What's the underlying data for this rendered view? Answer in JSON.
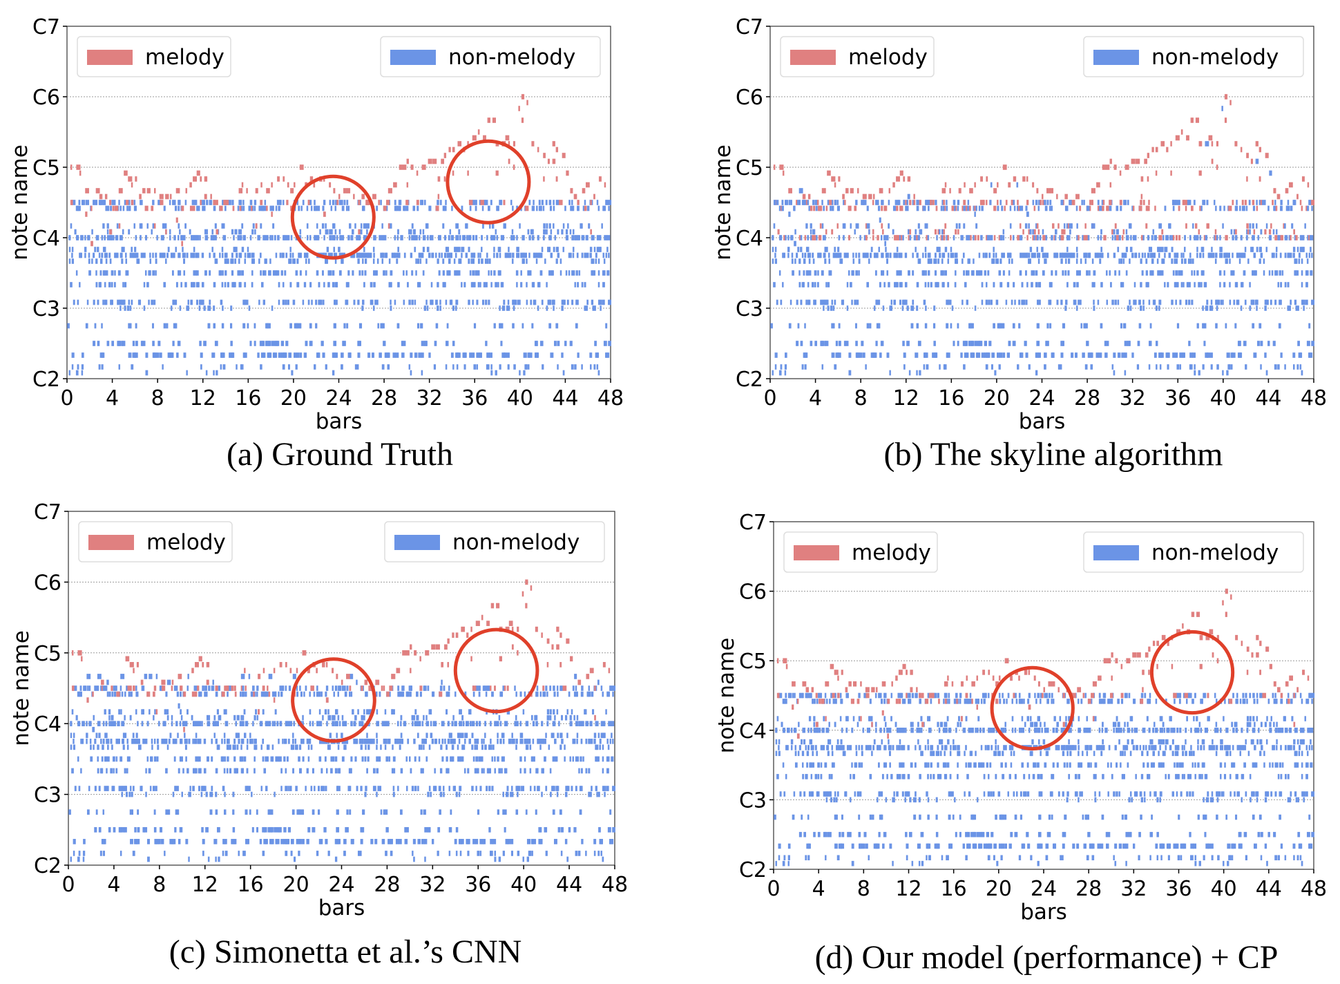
{
  "figure": {
    "captions": [
      "(a) Ground Truth",
      "(b) The skyline algorithm",
      "(c) Simonetta et al.’s CNN",
      "(d) Our model (performance) + CP"
    ]
  },
  "colors": {
    "melody": "#e08080",
    "non_melody": "#6b94e6",
    "circle": "#e0402a",
    "gridline": "#999999"
  },
  "chart_data": [
    {
      "id": "a",
      "type": "piano-roll",
      "title": "(a) Ground Truth",
      "xlabel": "bars",
      "ylabel": "note name",
      "xlim": [
        0,
        48
      ],
      "xticks": [
        0,
        4,
        8,
        12,
        16,
        20,
        24,
        28,
        32,
        36,
        40,
        44,
        48
      ],
      "ylim_midi": [
        36,
        96
      ],
      "yticks": [
        "C2",
        "C3",
        "C4",
        "C5",
        "C6",
        "C7"
      ],
      "ytick_midi": [
        36,
        48,
        60,
        72,
        84,
        96
      ],
      "grid": "dotted horizontal at C3, C4, C5, C6",
      "legend": [
        {
          "label": "melody",
          "color": "#e08080",
          "position": "top-left"
        },
        {
          "label": "non-melody",
          "color": "#6b94e6",
          "position": "top-right"
        }
      ],
      "annotations": [
        {
          "type": "circle",
          "center_bar": 23.5,
          "center_midi": 63.5,
          "radius_bars": 3.6
        },
        {
          "type": "circle",
          "center_bar": 37.2,
          "center_midi": 69.5,
          "radius_bars": 3.6
        }
      ],
      "melody_model": "ground-truth"
    },
    {
      "id": "b",
      "type": "piano-roll",
      "title": "(b) The skyline algorithm",
      "xlabel": "bars",
      "ylabel": "note name",
      "xlim": [
        0,
        48
      ],
      "xticks": [
        0,
        4,
        8,
        12,
        16,
        20,
        24,
        28,
        32,
        36,
        40,
        44,
        48
      ],
      "ylim_midi": [
        36,
        96
      ],
      "yticks": [
        "C2",
        "C3",
        "C4",
        "C5",
        "C6",
        "C7"
      ],
      "ytick_midi": [
        36,
        48,
        60,
        72,
        84,
        96
      ],
      "grid": "dotted horizontal at C3, C4, C5, C6",
      "legend": [
        {
          "label": "melody",
          "color": "#e08080",
          "position": "top-left"
        },
        {
          "label": "non-melody",
          "color": "#6b94e6",
          "position": "top-right"
        }
      ],
      "annotations": [],
      "melody_model": "skyline"
    },
    {
      "id": "c",
      "type": "piano-roll",
      "title": "(c) Simonetta et al.’s CNN",
      "xlabel": "bars",
      "ylabel": "note name",
      "xlim": [
        0,
        48
      ],
      "xticks": [
        0,
        4,
        8,
        12,
        16,
        20,
        24,
        28,
        32,
        36,
        40,
        44,
        48
      ],
      "ylim_midi": [
        36,
        96
      ],
      "yticks": [
        "C2",
        "C3",
        "C4",
        "C5",
        "C6",
        "C7"
      ],
      "ytick_midi": [
        36,
        48,
        60,
        72,
        84,
        96
      ],
      "grid": "dotted horizontal at C3, C4, C5, C6",
      "legend": [
        {
          "label": "melody",
          "color": "#e08080",
          "position": "top-left"
        },
        {
          "label": "non-melody",
          "color": "#6b94e6",
          "position": "top-right"
        }
      ],
      "annotations": [
        {
          "type": "circle",
          "center_bar": 23.3,
          "center_midi": 64.0,
          "radius_bars": 3.6
        },
        {
          "type": "circle",
          "center_bar": 37.6,
          "center_midi": 69.0,
          "radius_bars": 3.6
        }
      ],
      "melody_model": "cnn"
    },
    {
      "id": "d",
      "type": "piano-roll",
      "title": "(d) Our model (performance) + CP",
      "xlabel": "bars",
      "ylabel": "note name",
      "xlim": [
        0,
        48
      ],
      "xticks": [
        0,
        4,
        8,
        12,
        16,
        20,
        24,
        28,
        32,
        36,
        40,
        44,
        48
      ],
      "ylim_midi": [
        36,
        96
      ],
      "yticks": [
        "C2",
        "C3",
        "C4",
        "C5",
        "C6",
        "C7"
      ],
      "ytick_midi": [
        36,
        48,
        60,
        72,
        84,
        96
      ],
      "grid": "dotted horizontal at C3, C4, C5, C6",
      "legend": [
        {
          "label": "melody",
          "color": "#e08080",
          "position": "top-left"
        },
        {
          "label": "non-melody",
          "color": "#6b94e6",
          "position": "top-right"
        }
      ],
      "annotations": [
        {
          "type": "circle",
          "center_bar": 23.0,
          "center_midi": 63.8,
          "radius_bars": 3.6
        },
        {
          "type": "circle",
          "center_bar": 37.2,
          "center_midi": 70.0,
          "radius_bars": 3.6
        }
      ],
      "melody_model": "ours"
    }
  ]
}
